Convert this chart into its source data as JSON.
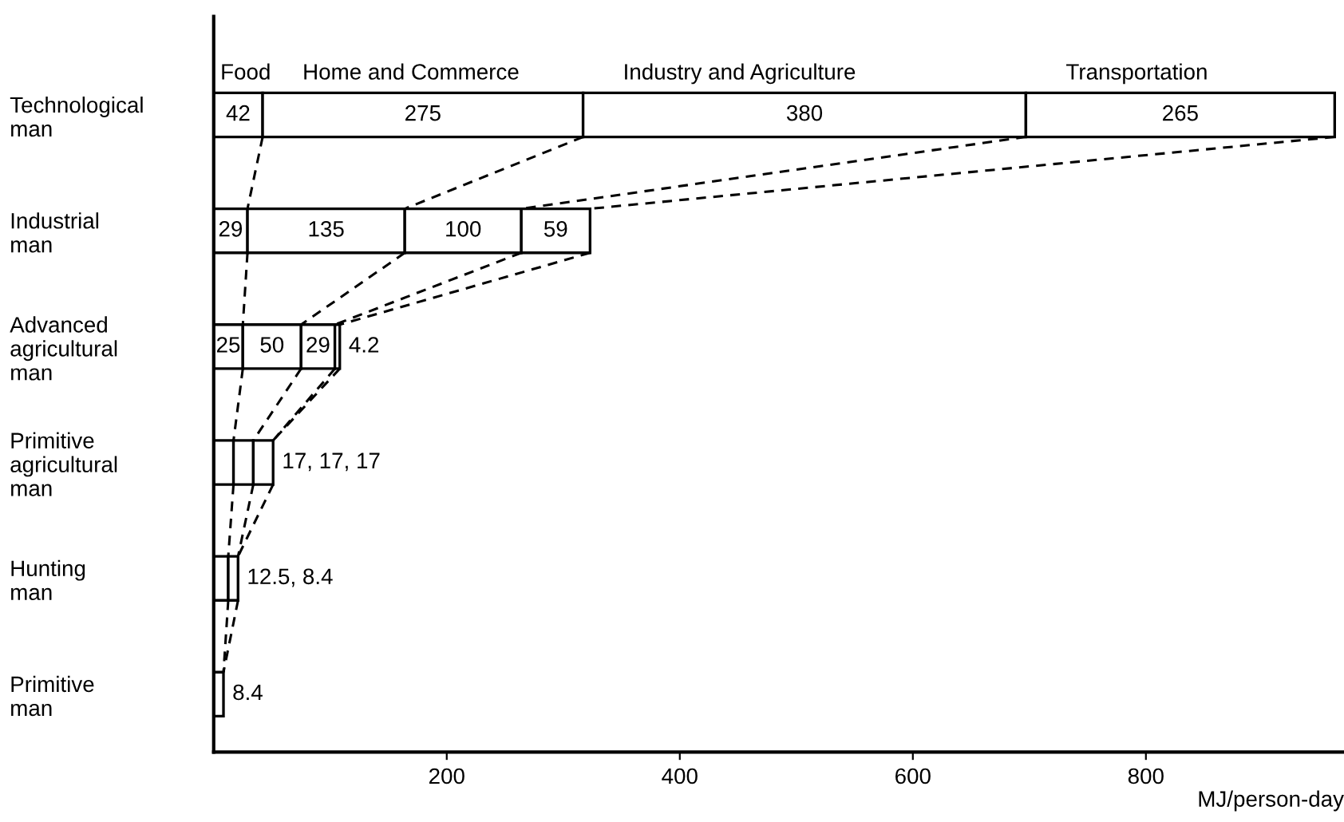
{
  "chart_data": {
    "type": "bar",
    "orientation": "horizontal",
    "stacked": true,
    "categories": [
      "Technological man",
      "Industrial man",
      "Advanced agricultural man",
      "Primitive agricultural man",
      "Hunting man",
      "Primitive man"
    ],
    "series": [
      {
        "name": "Food",
        "color": "#ffffff",
        "values": [
          42,
          29,
          25,
          17,
          12.5,
          8.4
        ],
        "value_labels": [
          "42",
          "29",
          "25",
          null,
          null,
          null
        ]
      },
      {
        "name": "Home and Commerce",
        "color": "#ffffff",
        "values": [
          275,
          135,
          50,
          17,
          8.4,
          null
        ],
        "value_labels": [
          "275",
          "135",
          "50",
          null,
          null,
          null
        ]
      },
      {
        "name": "Industry and Agriculture",
        "color": "#ffffff",
        "values": [
          380,
          100,
          29,
          17,
          null,
          null
        ],
        "value_labels": [
          "380",
          "100",
          "29",
          null,
          null,
          null
        ]
      },
      {
        "name": "Transportation",
        "color": "#ffffff",
        "values": [
          265,
          59,
          4.2,
          null,
          null,
          null
        ],
        "value_labels": [
          "265",
          "59",
          "4.2",
          null,
          null,
          null
        ]
      }
    ],
    "annotations": [
      {
        "text": "17, 17, 17",
        "x": 51,
        "y": "Primitive agricultural man"
      },
      {
        "text": "12.5, 8.4",
        "x": 20.9,
        "y": "Hunting man"
      },
      {
        "text": "8.4",
        "x": 8.4,
        "y": "Primitive man"
      }
    ],
    "xlabel": "MJ/person-day",
    "xlim": [
      0,
      970
    ],
    "xticks": [
      200,
      400,
      600,
      800
    ],
    "grid": false,
    "legend": false
  }
}
